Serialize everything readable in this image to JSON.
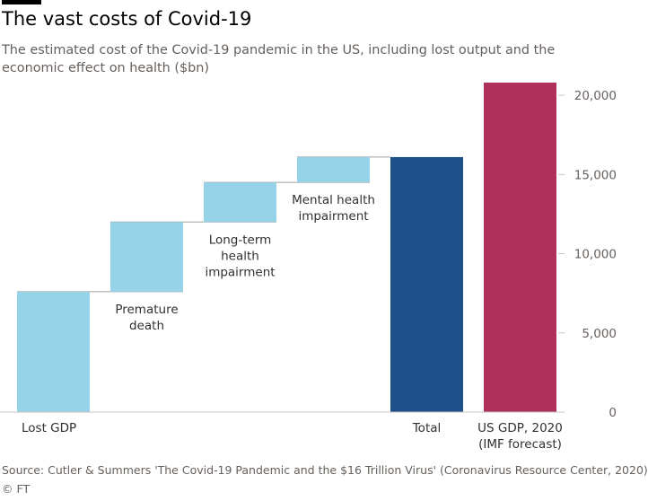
{
  "header": {
    "title": "The vast costs of Covid-19",
    "subtitle": "The estimated cost of the Covid-19 pandemic in the US, including lost output and the economic effect on health ($bn)"
  },
  "footer": {
    "source": "Source: Cutler & Summers 'The Covid-19 Pandemic and the $16 Trillion Virus' (Coronavirus Resource Center, 2020)",
    "credit": "© FT"
  },
  "chart_data": {
    "type": "bar",
    "variant": "waterfall",
    "title": "The vast costs of Covid-19",
    "subtitle": "The estimated cost of the Covid-19 pandemic in the US, including lost output and the economic effect on health ($bn)",
    "categories": [
      "Lost GDP",
      "Premature death",
      "Long-term health impairment",
      "Mental health impairment",
      "Total",
      "US GDP, 2020 (IMF forecast)"
    ],
    "bars": [
      {
        "label": [
          "Lost GDP"
        ],
        "start": 0,
        "end": 7600,
        "kind": "increment",
        "label_position": "below-axis"
      },
      {
        "label": [
          "Premature",
          "death"
        ],
        "start": 7600,
        "end": 12000,
        "kind": "increment",
        "label_position": "below-bar"
      },
      {
        "label": [
          "Long-term",
          "health",
          "impairment"
        ],
        "start": 12000,
        "end": 14500,
        "kind": "increment",
        "label_position": "below-bar"
      },
      {
        "label": [
          "Mental health",
          "impairment"
        ],
        "start": 14500,
        "end": 16100,
        "kind": "increment",
        "label_position": "below-bar"
      },
      {
        "label": [
          "Total"
        ],
        "start": 0,
        "end": 16100,
        "kind": "total",
        "label_position": "below-axis"
      },
      {
        "label": [
          "US GDP, 2020",
          "(IMF forecast)"
        ],
        "start": 0,
        "end": 20800,
        "kind": "comparison",
        "label_position": "below-axis"
      }
    ],
    "yaxis": {
      "position": "right",
      "ylim": [
        0,
        20800
      ],
      "ticks": [
        0,
        5000,
        10000,
        15000,
        20000
      ],
      "tick_labels": [
        "0",
        "5,000",
        "10,000",
        "15,000",
        "20,000"
      ]
    },
    "grid": false,
    "connectors": true,
    "colors": {
      "increment": "#96d2e8",
      "total": "#1e518a",
      "comparison": "#b0305c",
      "connector": "#a7a29d",
      "axis": "#c8c3be",
      "tick_text": "#66605c",
      "label_text": "#33302e"
    }
  }
}
